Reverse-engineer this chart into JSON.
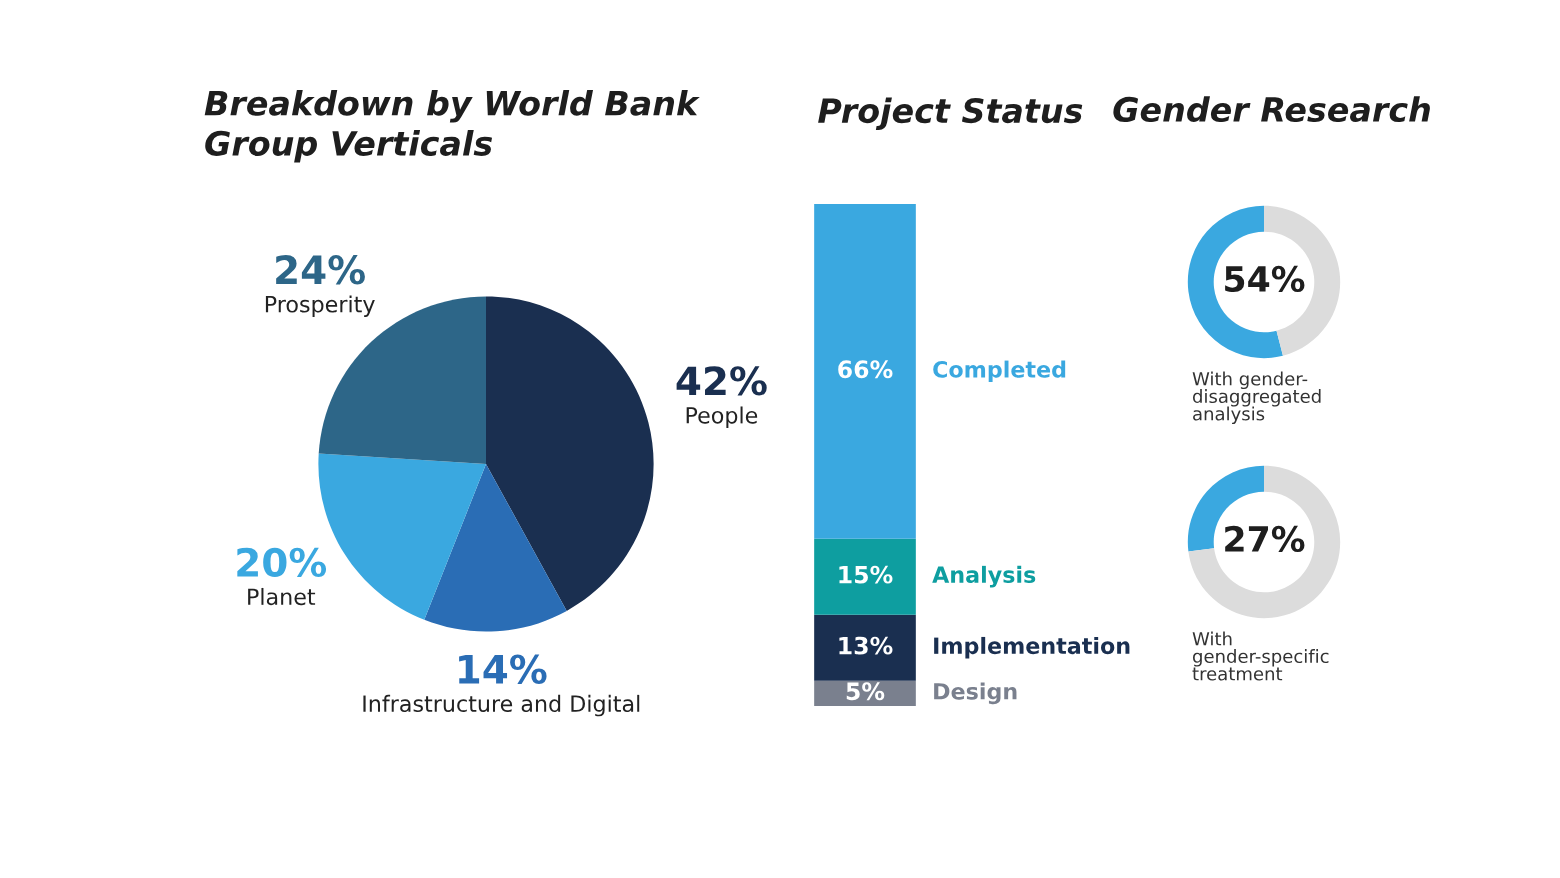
{
  "chart_data": [
    {
      "type": "pie",
      "title": "Breakdown by World Bank\nGroup Verticals",
      "categories": [
        "People",
        "Infrastructure and Digital",
        "Planet",
        "Prosperity"
      ],
      "values": [
        42,
        14,
        20,
        24
      ],
      "colors": [
        "#1a2f50",
        "#2a6db5",
        "#3aa8e0",
        "#2d6688"
      ],
      "value_labels": [
        "42%",
        "14%",
        "20%",
        "24%"
      ]
    },
    {
      "type": "bar",
      "title": "Project Status",
      "stacked": true,
      "categories": [
        null
      ],
      "series": [
        {
          "name": "Design",
          "color": "#7a808e",
          "values": [
            5
          ],
          "value_labels": [
            "5%"
          ]
        },
        {
          "name": "Implementation",
          "color": "#1a2f50",
          "values": [
            13
          ],
          "value_labels": [
            "13%"
          ]
        },
        {
          "name": "Analysis",
          "color": "#0e9ea0",
          "values": [
            15
          ],
          "value_labels": [
            "15%"
          ]
        },
        {
          "name": "Completed",
          "color": "#3aa8e0",
          "values": [
            66
          ],
          "value_labels": [
            "66%"
          ]
        }
      ]
    },
    {
      "type": "donut",
      "title": "Gender Research",
      "categories": [
        null,
        null
      ],
      "values": [
        54,
        46
      ],
      "colors": [
        "#3aa8e0",
        "#dcdcdc"
      ],
      "value_labels": [
        "54%",
        null
      ],
      "annotations": [
        "With gender-\ndisaggregated\nanalysis"
      ]
    },
    {
      "type": "donut",
      "categories": [
        null,
        null
      ],
      "values": [
        27,
        73
      ],
      "colors": [
        "#3aa8e0",
        "#dcdcdc"
      ],
      "value_labels": [
        "27%",
        null
      ],
      "annotations": [
        "With\ngender-specific\ntreatment"
      ]
    }
  ]
}
